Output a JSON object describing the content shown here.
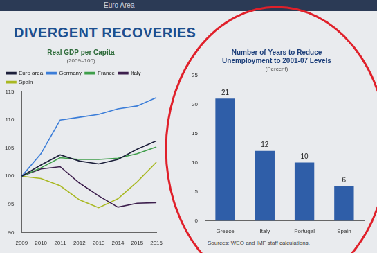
{
  "header": "Euro Area",
  "title": "DIVERGENT RECOVERIES",
  "chart_data": [
    {
      "type": "line",
      "title": "Real GDP per Capita",
      "subtitle": "(2009=100)",
      "categories": [
        "2009",
        "2010",
        "2011",
        "2012",
        "2013",
        "2014",
        "2015",
        "2016"
      ],
      "series": [
        {
          "name": "Euro area",
          "color": "#1c1f3a",
          "values": [
            100,
            102.0,
            103.8,
            102.7,
            102.2,
            103.0,
            104.8,
            106.3
          ]
        },
        {
          "name": "Germany",
          "color": "#3b7dd8",
          "values": [
            100,
            104.0,
            110.0,
            110.5,
            111.0,
            112.0,
            112.5,
            114.0
          ]
        },
        {
          "name": "France",
          "color": "#3f9e4a",
          "values": [
            100,
            101.5,
            103.3,
            103.0,
            103.0,
            103.2,
            104.0,
            105.2
          ]
        },
        {
          "name": "Italy",
          "color": "#3d1f4d",
          "values": [
            100,
            101.3,
            101.7,
            98.8,
            96.5,
            94.5,
            95.2,
            95.3
          ]
        },
        {
          "name": "Spain",
          "color": "#a9b822",
          "values": [
            100,
            99.6,
            98.3,
            95.8,
            94.4,
            96.0,
            99.0,
            102.5
          ]
        }
      ],
      "ylim": [
        90,
        115
      ],
      "yticks": [
        90,
        95,
        100,
        105,
        110,
        115
      ],
      "grid": false,
      "legend": "upper left"
    },
    {
      "type": "bar",
      "title": "Number of Years to Reduce Unemployment to 2001-07 Levels",
      "subtitle": "(Percent)",
      "categories": [
        "Greece",
        "Italy",
        "Portugal",
        "Spain"
      ],
      "values": [
        21,
        12,
        10,
        6
      ],
      "color": "#2f5ea8",
      "ylim": [
        0,
        25
      ],
      "yticks": [
        0,
        5,
        10,
        15,
        20,
        25
      ],
      "grid": false,
      "data_labels": true,
      "source": "Sources: WEO and IMF staff calculations."
    }
  ]
}
